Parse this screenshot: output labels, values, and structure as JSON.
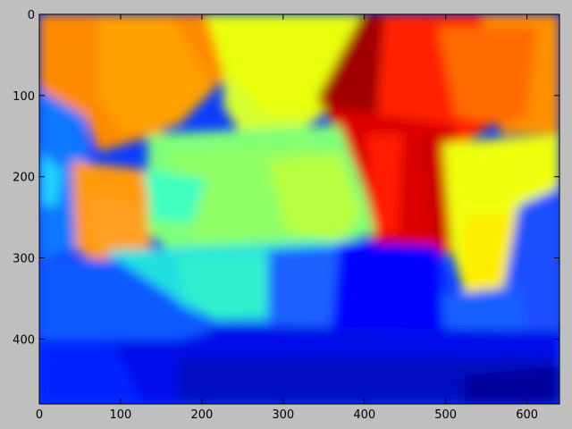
{
  "figure": {
    "background": "#bfbfbf",
    "colormap": "jet"
  },
  "chart_data": {
    "type": "heatmap",
    "title": "",
    "xlabel": "",
    "ylabel": "",
    "xlim": [
      0,
      640
    ],
    "ylim": [
      480,
      0
    ],
    "x_ticks": [
      "0",
      "100",
      "200",
      "300",
      "400",
      "500",
      "600"
    ],
    "y_ticks": [
      "0",
      "100",
      "200",
      "300",
      "400"
    ]
  }
}
